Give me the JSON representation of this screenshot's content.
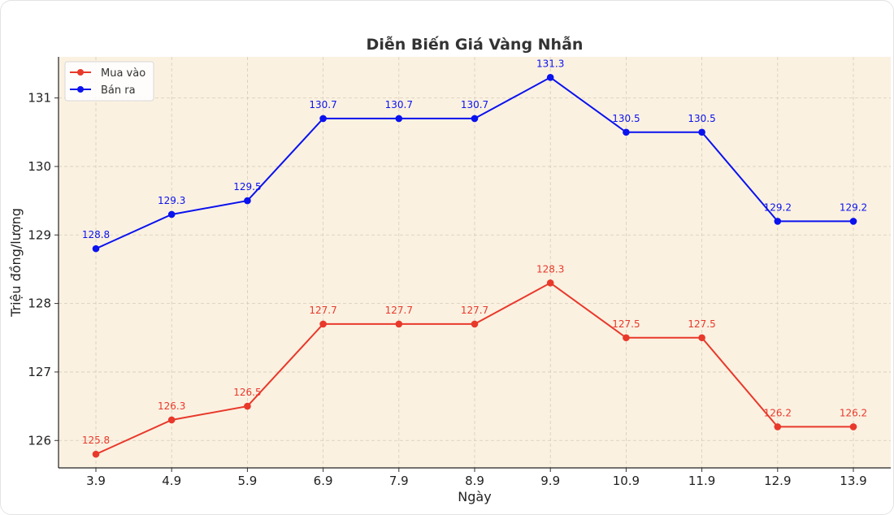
{
  "chart_data": {
    "type": "line",
    "title": "Diễn Biến Giá Vàng Nhẫn",
    "xlabel": "Ngày",
    "ylabel": "Triệu đồng/lượng",
    "categories": [
      "3.9",
      "4.9",
      "5.9",
      "6.9",
      "7.9",
      "8.9",
      "9.9",
      "10.9",
      "11.9",
      "12.9",
      "13.9"
    ],
    "series": [
      {
        "name": "Mua vào",
        "color": "#e8392b",
        "values": [
          125.8,
          126.3,
          126.5,
          127.7,
          127.7,
          127.7,
          128.3,
          127.5,
          127.5,
          126.2,
          126.2
        ]
      },
      {
        "name": "Bán ra",
        "color": "#0a12ee",
        "values": [
          128.8,
          129.3,
          129.5,
          130.7,
          130.7,
          130.7,
          131.3,
          130.5,
          130.5,
          129.2,
          129.2
        ]
      }
    ],
    "ylim": [
      125.6,
      131.6
    ],
    "yticks": [
      126,
      127,
      128,
      129,
      130,
      131
    ],
    "grid": true,
    "legend": "top-left",
    "plot_background": "#fbf1e1"
  }
}
